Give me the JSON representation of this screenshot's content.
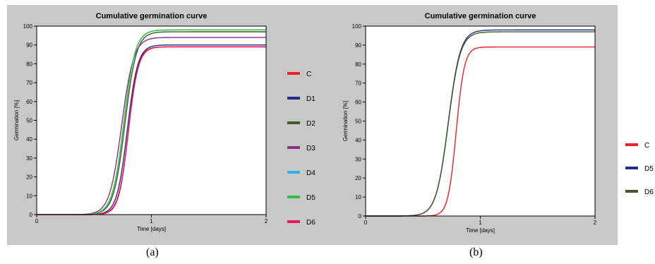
{
  "captions": [
    "(a)",
    "(b)"
  ],
  "chart_data": [
    {
      "type": "line",
      "title": "Cumulative germination curve",
      "xlabel": "Time [days]",
      "ylabel": "Germination [%]",
      "xlim": [
        0,
        2
      ],
      "ylim": [
        0,
        100
      ],
      "xticks": [
        0,
        1,
        2
      ],
      "yticks": [
        0,
        10,
        20,
        30,
        40,
        50,
        60,
        70,
        80,
        90,
        100
      ],
      "grid": false,
      "legend_position": "right",
      "series": [
        {
          "name": "C",
          "color": "#e8202a",
          "max": 89,
          "t50": 0.8,
          "slope": 24
        },
        {
          "name": "D1",
          "color": "#1f2f8a",
          "max": 90,
          "t50": 0.79,
          "slope": 22
        },
        {
          "name": "D2",
          "color": "#3f5a27",
          "max": 97,
          "t50": 0.77,
          "slope": 20
        },
        {
          "name": "D3",
          "color": "#8a2f8f",
          "max": 94,
          "t50": 0.74,
          "slope": 19
        },
        {
          "name": "D4",
          "color": "#2bb5e0",
          "max": 98,
          "t50": 0.76,
          "slope": 20
        },
        {
          "name": "D5",
          "color": "#3dba3d",
          "max": 98,
          "t50": 0.76,
          "slope": 20
        },
        {
          "name": "D6",
          "color": "#e5195f",
          "max": 89,
          "t50": 0.8,
          "slope": 23
        }
      ]
    },
    {
      "type": "line",
      "title": "Cumulative germination curve",
      "xlabel": "Time [days]",
      "ylabel": "Germination [%]",
      "xlim": [
        0,
        2
      ],
      "ylim": [
        0,
        100
      ],
      "xticks": [
        0,
        1,
        2
      ],
      "yticks": [
        0,
        10,
        20,
        30,
        40,
        50,
        60,
        70,
        80,
        90,
        100
      ],
      "grid": false,
      "legend_position": "right",
      "series": [
        {
          "name": "C",
          "color": "#e8202a",
          "max": 89,
          "t50": 0.79,
          "slope": 28
        },
        {
          "name": "D5",
          "color": "#1f2f8a",
          "max": 98,
          "t50": 0.72,
          "slope": 19
        },
        {
          "name": "D6",
          "color": "#3f5a27",
          "max": 97,
          "t50": 0.72,
          "slope": 19
        }
      ]
    }
  ]
}
